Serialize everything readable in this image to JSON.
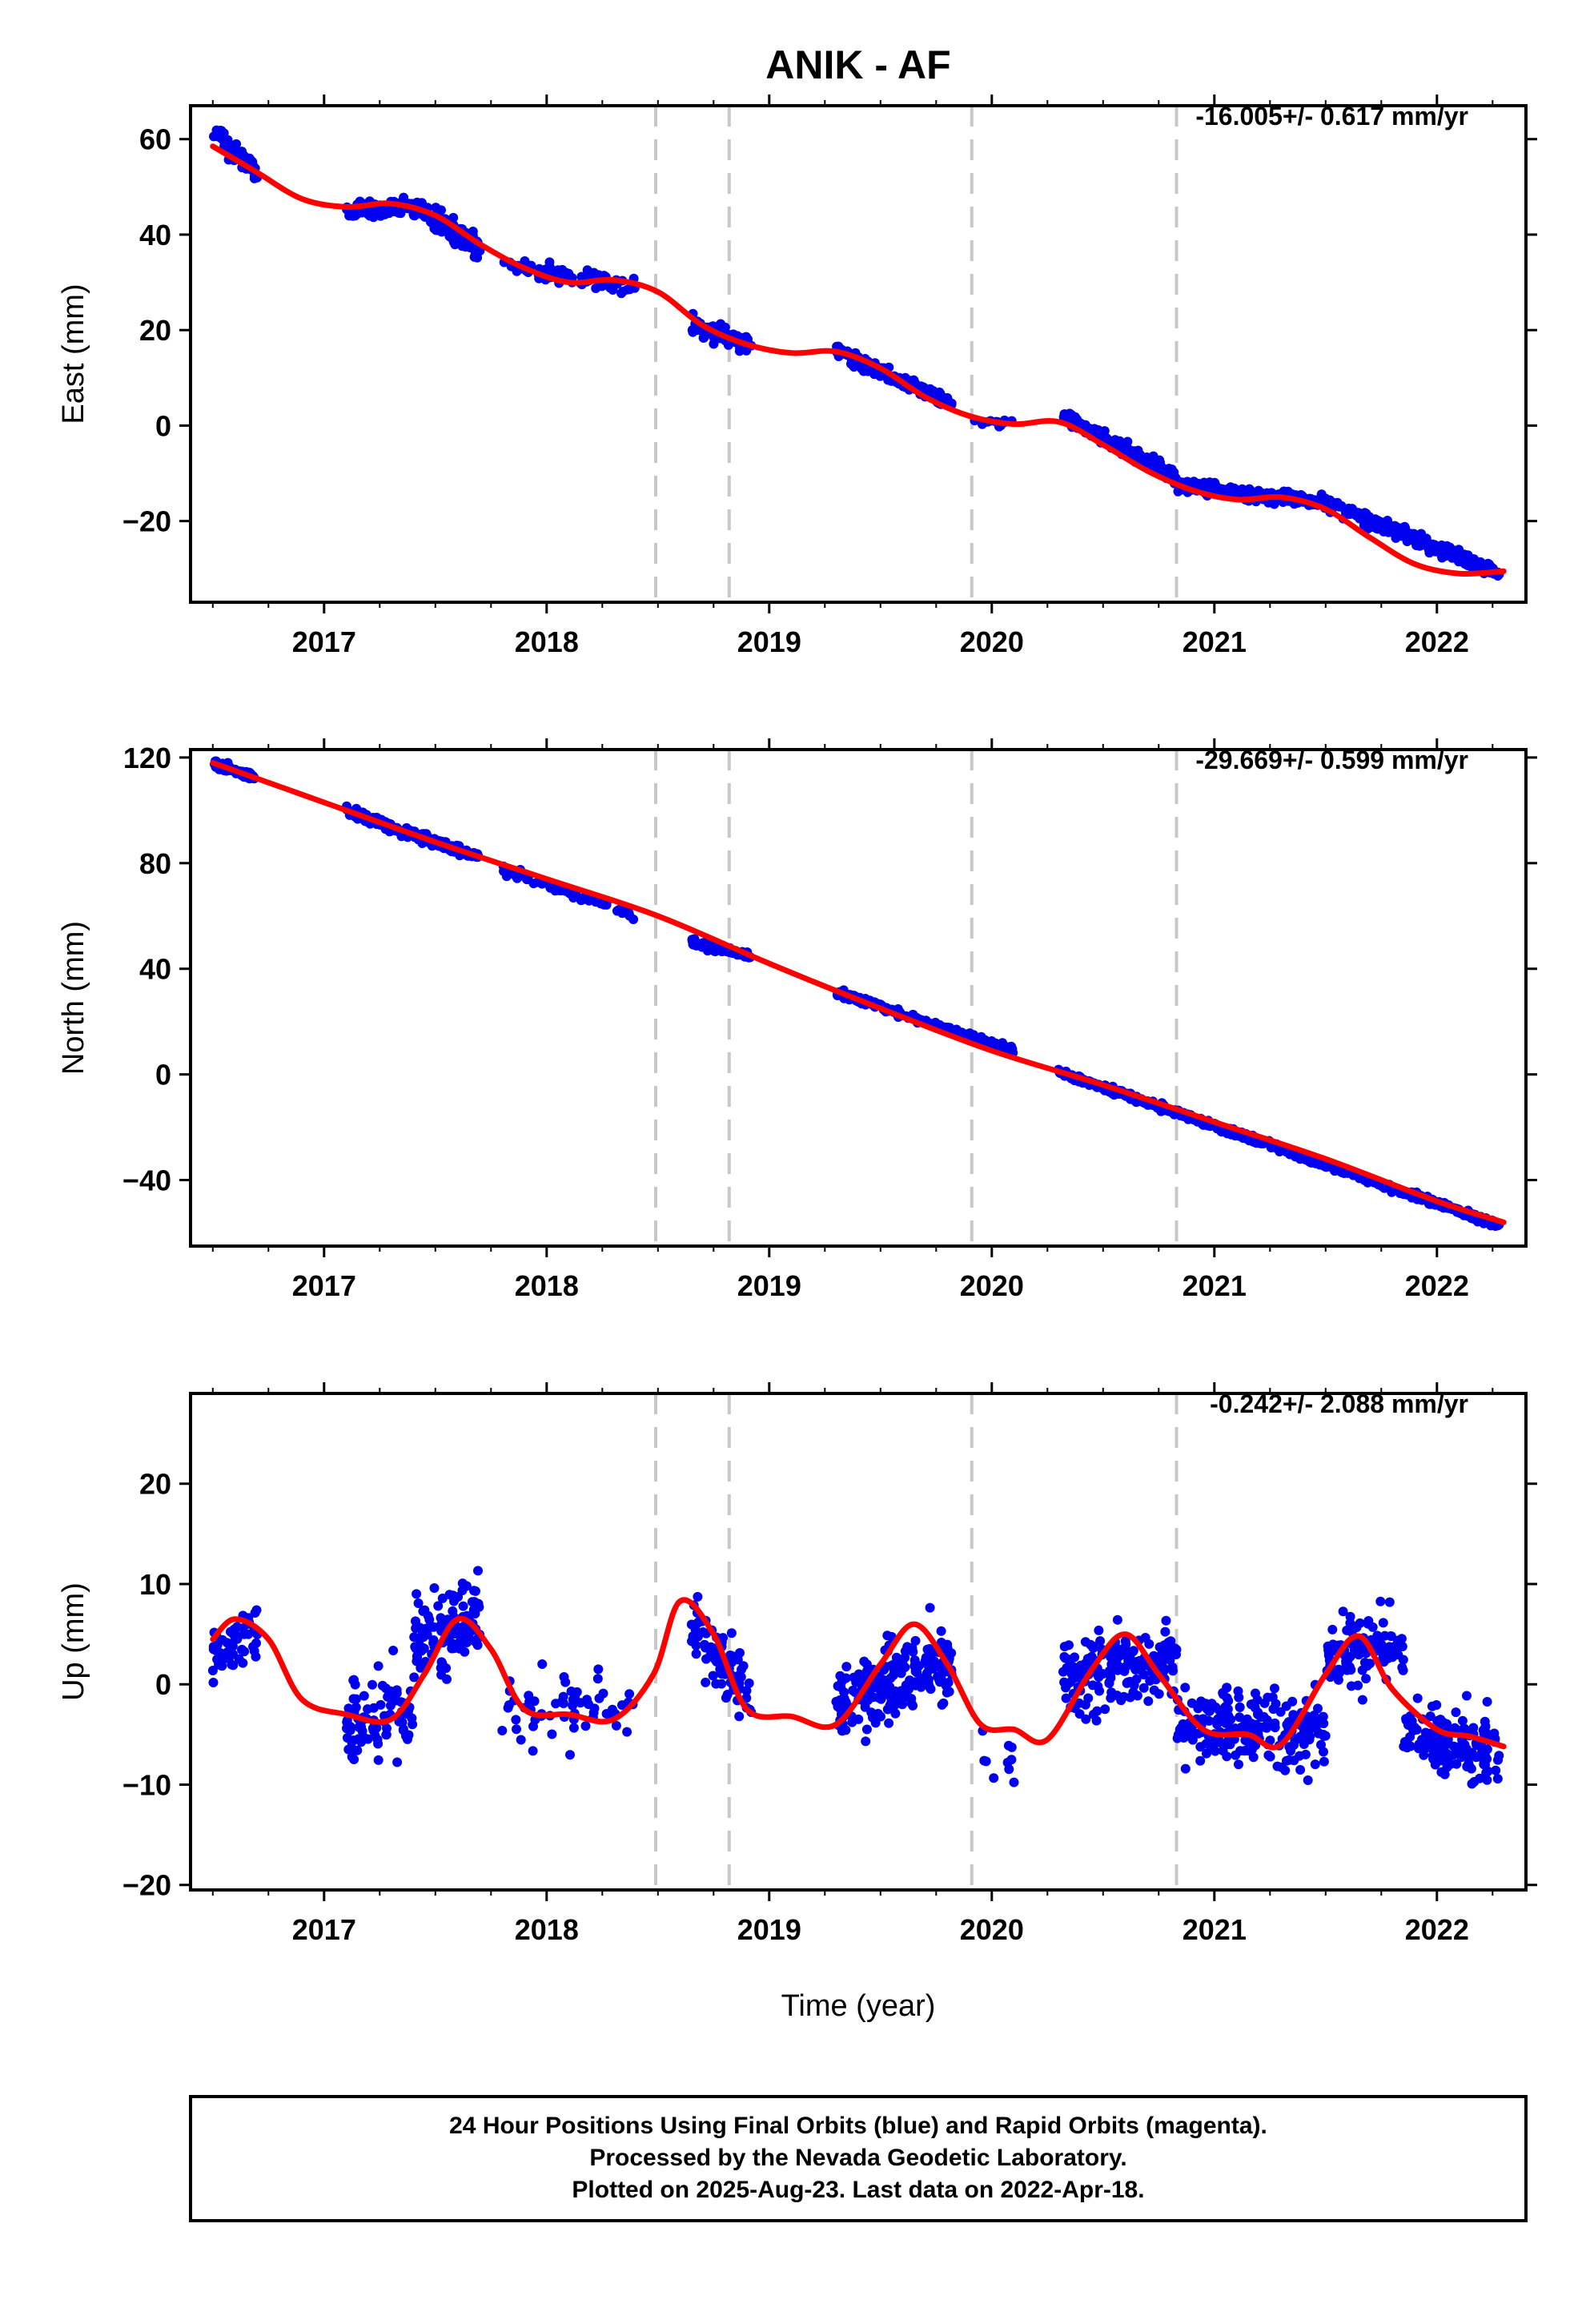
{
  "colors": {
    "data": "#0000ee",
    "model": "#ff0000",
    "event_line": "#c8c8c8",
    "frame": "#000000"
  },
  "chart_data": [
    {
      "type": "scatter",
      "panel": "east",
      "title": "ANIK - AF",
      "ylabel": "East (mm)",
      "xlabel": "",
      "rate": "-16.005+/- 0.617 mm/yr",
      "xlim": [
        2016.4,
        2022.4
      ],
      "ylim": [
        -37,
        67
      ],
      "xticks": [
        2017,
        2018,
        2019,
        2020,
        2021,
        2022
      ],
      "xtick_labels": [
        "2017",
        "2018",
        "2019",
        "2020",
        "2021",
        "2022"
      ],
      "yticks": [
        -20,
        0,
        20,
        40,
        60
      ],
      "ytick_labels": [
        "−20",
        "0",
        "20",
        "40",
        "60"
      ],
      "event_lines": [
        2018.49,
        2018.82,
        2019.91,
        2020.83
      ],
      "model_x": [
        2016.5,
        2016.7,
        2016.9,
        2017.1,
        2017.3,
        2017.5,
        2017.7,
        2017.9,
        2018.1,
        2018.3,
        2018.5,
        2018.7,
        2018.9,
        2019.1,
        2019.3,
        2019.5,
        2019.7,
        2019.9,
        2020.1,
        2020.3,
        2020.5,
        2020.7,
        2020.9,
        2021.1,
        2021.3,
        2021.5,
        2021.7,
        2021.9,
        2022.1,
        2022.3
      ],
      "model_y": [
        58.5,
        53,
        47.5,
        45.8,
        46.5,
        44,
        38,
        33,
        30,
        30.5,
        28,
        21,
        17,
        15.2,
        15.5,
        12,
        6,
        2,
        0.3,
        0.8,
        -4,
        -9.5,
        -13.5,
        -15.5,
        -15,
        -17.5,
        -23.5,
        -29,
        -31,
        -30.5
      ],
      "point_segments": [
        {
          "x0": 2016.5,
          "x1": 2016.7,
          "n": 60,
          "start": 62,
          "end": 53,
          "noise": 3
        },
        {
          "x0": 2017.1,
          "x1": 2017.4,
          "n": 120,
          "start": 45,
          "end": 46,
          "noise": 2.2
        },
        {
          "x0": 2017.4,
          "x1": 2017.7,
          "n": 130,
          "start": 46,
          "end": 37,
          "noise": 3.2
        },
        {
          "x0": 2017.8,
          "x1": 2018.4,
          "n": 80,
          "start": 34,
          "end": 29,
          "noise": 2.5
        },
        {
          "x0": 2018.65,
          "x1": 2018.92,
          "n": 90,
          "start": 21,
          "end": 17,
          "noise": 3
        },
        {
          "x0": 2019.3,
          "x1": 2019.82,
          "n": 200,
          "start": 15.5,
          "end": 4.5,
          "noise": 2
        },
        {
          "x0": 2019.9,
          "x1": 2020.1,
          "n": 12,
          "start": 1.5,
          "end": 0,
          "noise": 1.5
        },
        {
          "x0": 2020.32,
          "x1": 2020.83,
          "n": 200,
          "start": 2,
          "end": -11,
          "noise": 2.2
        },
        {
          "x0": 2020.83,
          "x1": 2021.55,
          "n": 230,
          "start": -12.5,
          "end": -16.5,
          "noise": 2
        },
        {
          "x0": 2021.55,
          "x1": 2022.28,
          "n": 220,
          "start": -17,
          "end": -31,
          "noise": 2
        }
      ]
    },
    {
      "type": "scatter",
      "panel": "north",
      "ylabel": "North (mm)",
      "xlabel": "",
      "rate": "-29.669+/- 0.599 mm/yr",
      "xlim": [
        2016.4,
        2022.4
      ],
      "ylim": [
        -65,
        123
      ],
      "xticks": [
        2017,
        2018,
        2019,
        2020,
        2021,
        2022
      ],
      "xtick_labels": [
        "2017",
        "2018",
        "2019",
        "2020",
        "2021",
        "2022"
      ],
      "yticks": [
        -40,
        0,
        40,
        80,
        120
      ],
      "ytick_labels": [
        "−40",
        "0",
        "40",
        "80",
        "120"
      ],
      "event_lines": [
        2018.49,
        2018.82,
        2019.91,
        2020.83
      ],
      "model_x": [
        2016.5,
        2017.0,
        2017.5,
        2018.0,
        2018.5,
        2019.0,
        2019.5,
        2020.0,
        2020.5,
        2021.0,
        2021.5,
        2022.0,
        2022.3
      ],
      "model_y": [
        118,
        103,
        88,
        74,
        60,
        42,
        25,
        9,
        -4,
        -18,
        -32,
        -48,
        -56
      ],
      "point_segments": [
        {
          "x0": 2016.5,
          "x1": 2016.7,
          "n": 60,
          "start": 118,
          "end": 112,
          "noise": 2.5
        },
        {
          "x0": 2017.1,
          "x1": 2017.7,
          "n": 200,
          "start": 100,
          "end": 82,
          "noise": 2.5
        },
        {
          "x0": 2017.8,
          "x1": 2018.4,
          "n": 70,
          "start": 78,
          "end": 60,
          "noise": 2.5
        },
        {
          "x0": 2018.65,
          "x1": 2018.92,
          "n": 80,
          "start": 50,
          "end": 45,
          "noise": 2.5
        },
        {
          "x0": 2019.3,
          "x1": 2020.1,
          "n": 220,
          "start": 31,
          "end": 9,
          "noise": 1.8
        },
        {
          "x0": 2020.3,
          "x1": 2022.28,
          "n": 700,
          "start": 1,
          "end": -57,
          "noise": 1.8
        }
      ]
    },
    {
      "type": "scatter",
      "panel": "up",
      "ylabel": "Up (mm)",
      "xlabel": "Time (year)",
      "rate": "-0.242+/- 2.088 mm/yr",
      "xlim": [
        2016.4,
        2022.4
      ],
      "ylim": [
        -20.5,
        29
      ],
      "xticks": [
        2017,
        2018,
        2019,
        2020,
        2021,
        2022
      ],
      "xtick_labels": [
        "2017",
        "2018",
        "2019",
        "2020",
        "2021",
        "2022"
      ],
      "yticks": [
        -20,
        -10,
        0,
        10,
        20
      ],
      "ytick_labels": [
        "−20",
        "−10",
        "0",
        "10",
        "20"
      ],
      "event_lines": [
        2018.49,
        2018.82,
        2019.91,
        2020.83
      ],
      "model_x": [
        2016.5,
        2016.6,
        2016.75,
        2016.9,
        2017.1,
        2017.3,
        2017.45,
        2017.6,
        2017.75,
        2017.9,
        2018.1,
        2018.3,
        2018.48,
        2018.6,
        2018.75,
        2018.9,
        2019.1,
        2019.3,
        2019.5,
        2019.65,
        2019.8,
        2019.95,
        2020.1,
        2020.25,
        2020.45,
        2020.6,
        2020.75,
        2020.95,
        2021.15,
        2021.3,
        2021.5,
        2021.65,
        2021.8,
        2022.0,
        2022.15,
        2022.3
      ],
      "model_y": [
        4.5,
        6.5,
        4.5,
        -1.5,
        -3,
        -3.5,
        1,
        6.5,
        3.5,
        -2.5,
        -3,
        -3.5,
        1,
        8.3,
        5,
        -2.5,
        -3.2,
        -4,
        2,
        6,
        2,
        -4,
        -4.5,
        -5.5,
        1.5,
        5,
        1,
        -4.5,
        -5,
        -6,
        1,
        4.8,
        -0.5,
        -4.5,
        -5.2,
        -6.2
      ],
      "point_segments": [
        {
          "x0": 2016.5,
          "x1": 2016.7,
          "n": 60,
          "start": 3,
          "end": 5,
          "noise": 4.5
        },
        {
          "x0": 2017.1,
          "x1": 2017.4,
          "n": 90,
          "start": -4,
          "end": -2,
          "noise": 6.5
        },
        {
          "x0": 2017.4,
          "x1": 2017.7,
          "n": 110,
          "start": 4,
          "end": 6,
          "noise": 6.5
        },
        {
          "x0": 2017.8,
          "x1": 2018.4,
          "n": 60,
          "start": -2,
          "end": -3,
          "noise": 6
        },
        {
          "x0": 2018.65,
          "x1": 2018.92,
          "n": 80,
          "start": 6,
          "end": -2,
          "noise": 6
        },
        {
          "x0": 2019.3,
          "x1": 2019.82,
          "n": 200,
          "start": -2,
          "end": 2,
          "noise": 5.5
        },
        {
          "x0": 2019.9,
          "x1": 2020.1,
          "n": 10,
          "start": -6,
          "end": -8,
          "noise": 4
        },
        {
          "x0": 2020.32,
          "x1": 2020.83,
          "n": 180,
          "start": 1,
          "end": 2,
          "noise": 5.5
        },
        {
          "x0": 2020.83,
          "x1": 2021.5,
          "n": 230,
          "start": -4,
          "end": -5,
          "noise": 5
        },
        {
          "x0": 2021.5,
          "x1": 2021.85,
          "n": 120,
          "start": 3,
          "end": 4,
          "noise": 5.5
        },
        {
          "x0": 2021.85,
          "x1": 2022.28,
          "n": 140,
          "start": -5,
          "end": -7,
          "noise": 5
        }
      ]
    }
  ],
  "footer": {
    "line1": "24 Hour Positions Using Final Orbits (blue) and Rapid Orbits (magenta).",
    "line2": "Processed by the Nevada Geodetic Laboratory.",
    "line3": "Plotted on 2025-Aug-23. Last data on 2022-Apr-18."
  }
}
